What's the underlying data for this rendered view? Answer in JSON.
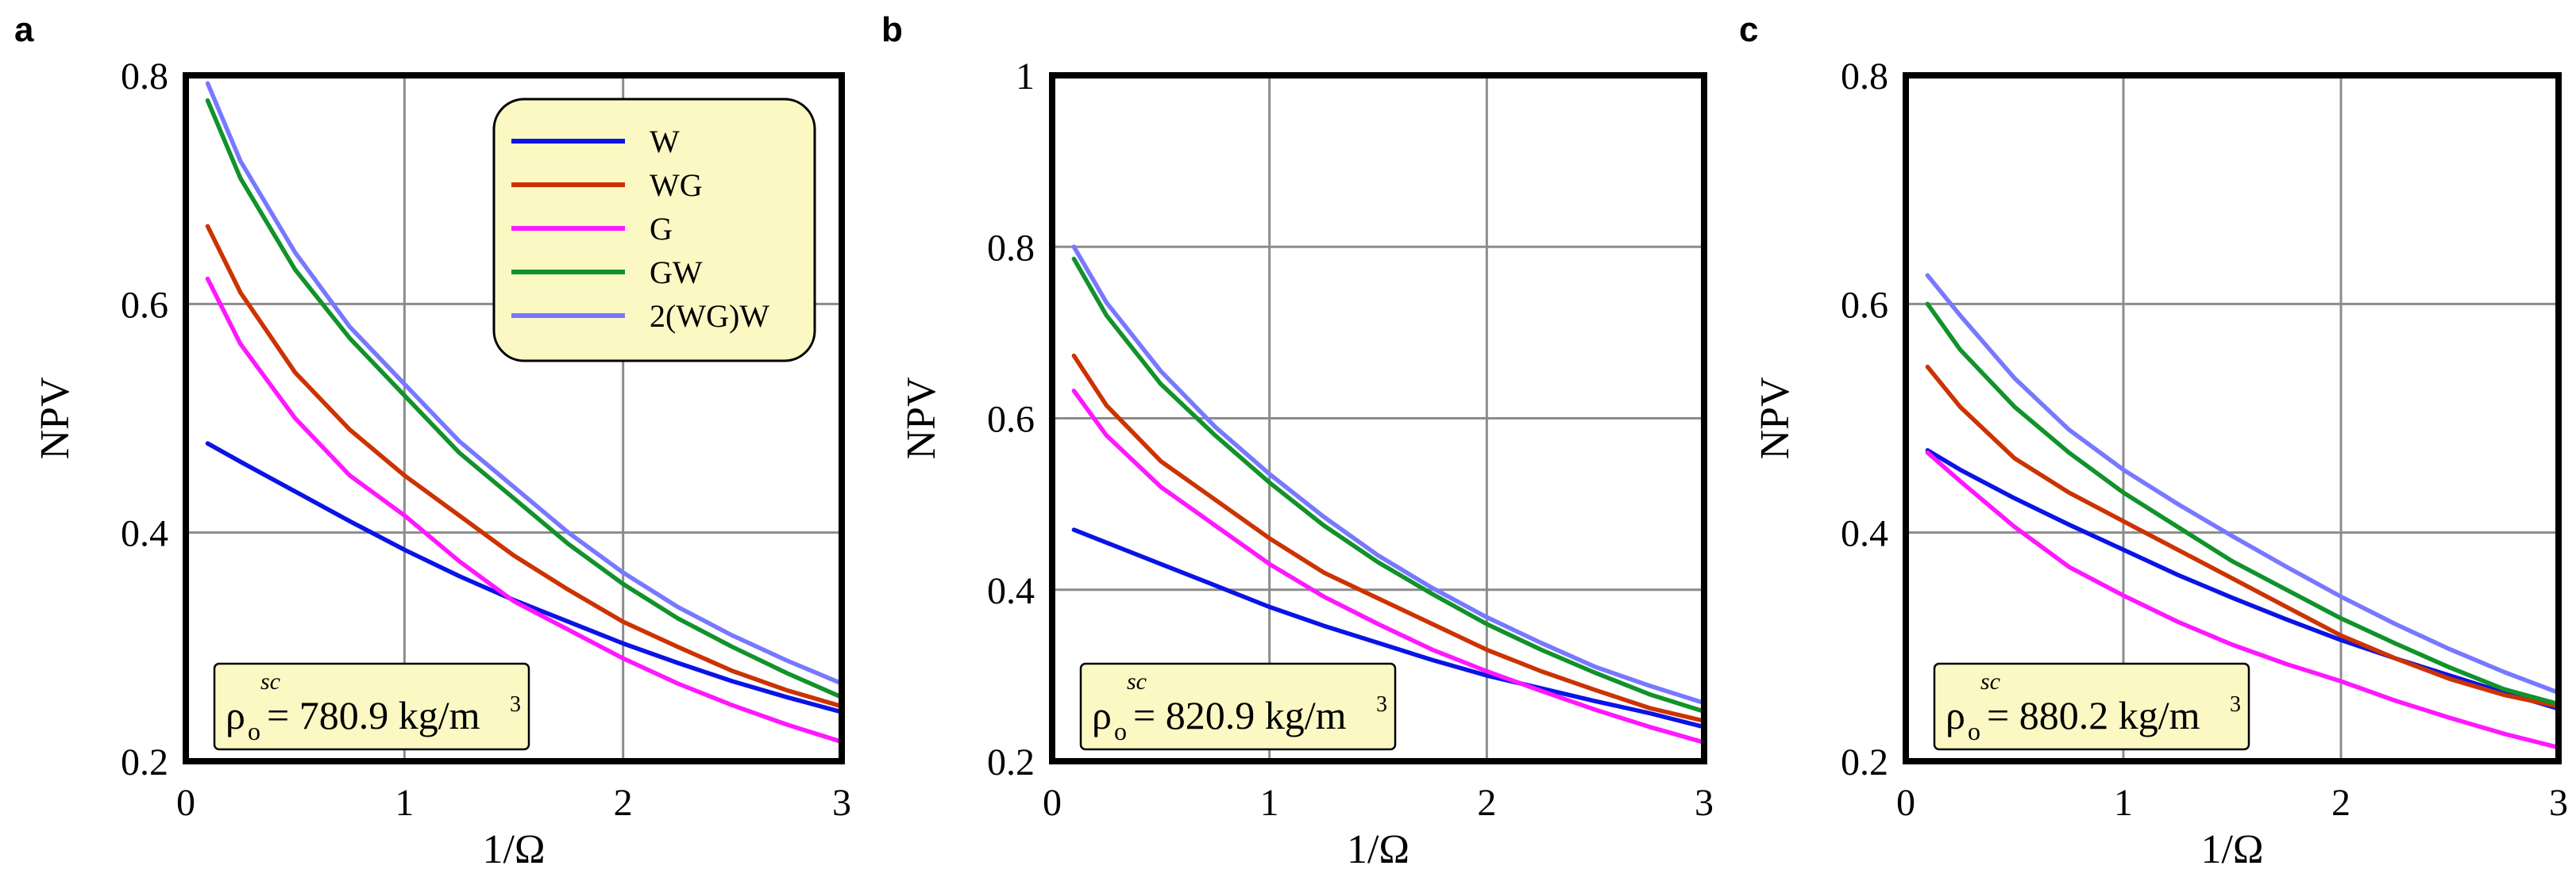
{
  "chart_data": [
    {
      "type": "line",
      "panel_label": "a",
      "xlabel": "1/Ω",
      "ylabel": "NPV",
      "xlim": [
        0,
        3
      ],
      "ylim": [
        0.2,
        0.8
      ],
      "xticks": [
        0,
        1,
        2,
        3
      ],
      "yticks": [
        0.2,
        0.4,
        0.6,
        0.8
      ],
      "grid": true,
      "legend_position": "top-right",
      "annotation": {
        "symbol": "ρ",
        "subscript": "o",
        "superscript": "sc",
        "text": "= 780.9 kg/m",
        "unit_power": "3"
      },
      "x": [
        0.1,
        0.25,
        0.5,
        0.75,
        1.0,
        1.25,
        1.5,
        1.75,
        2.0,
        2.25,
        2.5,
        2.75,
        3.0
      ],
      "series": [
        {
          "name": "W",
          "color": "#0a14e6",
          "values": [
            0.478,
            0.462,
            0.436,
            0.41,
            0.385,
            0.362,
            0.341,
            0.322,
            0.303,
            0.286,
            0.27,
            0.256,
            0.243
          ]
        },
        {
          "name": "WG",
          "color": "#cc3300",
          "values": [
            0.668,
            0.61,
            0.54,
            0.49,
            0.45,
            0.415,
            0.38,
            0.35,
            0.322,
            0.3,
            0.279,
            0.262,
            0.248
          ]
        },
        {
          "name": "G",
          "color": "#ff18ff",
          "values": [
            0.622,
            0.565,
            0.5,
            0.45,
            0.415,
            0.375,
            0.34,
            0.315,
            0.29,
            0.268,
            0.249,
            0.232,
            0.217
          ]
        },
        {
          "name": "GW",
          "color": "#11922a",
          "values": [
            0.778,
            0.71,
            0.63,
            0.57,
            0.52,
            0.47,
            0.43,
            0.39,
            0.355,
            0.325,
            0.3,
            0.277,
            0.256
          ]
        },
        {
          "name": "2(WG)W",
          "color": "#7878ff",
          "values": [
            0.793,
            0.725,
            0.645,
            0.58,
            0.53,
            0.48,
            0.44,
            0.4,
            0.365,
            0.335,
            0.31,
            0.288,
            0.268
          ]
        }
      ]
    },
    {
      "type": "line",
      "panel_label": "b",
      "xlabel": "1/Ω",
      "ylabel": "NPV",
      "xlim": [
        0,
        3
      ],
      "ylim": [
        0.2,
        1.0
      ],
      "xticks": [
        0,
        1,
        2,
        3
      ],
      "yticks": [
        0.2,
        0.4,
        0.6,
        0.8,
        1
      ],
      "grid": true,
      "annotation": {
        "symbol": "ρ",
        "subscript": "o",
        "superscript": "sc",
        "text": "= 820.9 kg/m",
        "unit_power": "3"
      },
      "x": [
        0.1,
        0.25,
        0.5,
        0.75,
        1.0,
        1.25,
        1.5,
        1.75,
        2.0,
        2.25,
        2.5,
        2.75,
        3.0
      ],
      "series": [
        {
          "name": "W",
          "color": "#0a14e6",
          "values": [
            0.47,
            0.455,
            0.43,
            0.405,
            0.38,
            0.358,
            0.338,
            0.318,
            0.3,
            0.285,
            0.27,
            0.256,
            0.24
          ]
        },
        {
          "name": "WG",
          "color": "#cc3300",
          "values": [
            0.673,
            0.615,
            0.55,
            0.505,
            0.46,
            0.42,
            0.39,
            0.36,
            0.33,
            0.305,
            0.283,
            0.262,
            0.247
          ]
        },
        {
          "name": "G",
          "color": "#ff18ff",
          "values": [
            0.632,
            0.58,
            0.52,
            0.475,
            0.43,
            0.392,
            0.36,
            0.33,
            0.305,
            0.282,
            0.26,
            0.24,
            0.222
          ]
        },
        {
          "name": "GW",
          "color": "#11922a",
          "values": [
            0.786,
            0.72,
            0.64,
            0.58,
            0.525,
            0.475,
            0.432,
            0.395,
            0.36,
            0.33,
            0.303,
            0.278,
            0.258
          ]
        },
        {
          "name": "2(WG)W",
          "color": "#7878ff",
          "values": [
            0.8,
            0.735,
            0.655,
            0.59,
            0.535,
            0.485,
            0.44,
            0.402,
            0.368,
            0.338,
            0.31,
            0.288,
            0.268
          ]
        }
      ]
    },
    {
      "type": "line",
      "panel_label": "c",
      "xlabel": "1/Ω",
      "ylabel": "NPV",
      "xlim": [
        0,
        3
      ],
      "ylim": [
        0.2,
        0.8
      ],
      "xticks": [
        0,
        1,
        2,
        3
      ],
      "yticks": [
        0.2,
        0.4,
        0.6,
        0.8
      ],
      "grid": true,
      "annotation": {
        "symbol": "ρ",
        "subscript": "o",
        "superscript": "sc",
        "text": "= 880.2 kg/m",
        "unit_power": "3"
      },
      "x": [
        0.1,
        0.25,
        0.5,
        0.75,
        1.0,
        1.25,
        1.5,
        1.75,
        2.0,
        2.25,
        2.5,
        2.75,
        3.0
      ],
      "series": [
        {
          "name": "W",
          "color": "#0a14e6",
          "values": [
            0.472,
            0.455,
            0.43,
            0.407,
            0.385,
            0.363,
            0.343,
            0.324,
            0.306,
            0.29,
            0.275,
            0.26,
            0.246
          ]
        },
        {
          "name": "WG",
          "color": "#cc3300",
          "values": [
            0.545,
            0.51,
            0.465,
            0.435,
            0.41,
            0.385,
            0.36,
            0.335,
            0.31,
            0.29,
            0.272,
            0.258,
            0.248
          ]
        },
        {
          "name": "G",
          "color": "#ff18ff",
          "values": [
            0.47,
            0.445,
            0.405,
            0.37,
            0.345,
            0.322,
            0.302,
            0.285,
            0.27,
            0.253,
            0.238,
            0.224,
            0.212
          ]
        },
        {
          "name": "GW",
          "color": "#11922a",
          "values": [
            0.6,
            0.56,
            0.51,
            0.47,
            0.435,
            0.405,
            0.375,
            0.35,
            0.325,
            0.303,
            0.282,
            0.263,
            0.25
          ]
        },
        {
          "name": "2(WG)W",
          "color": "#7878ff",
          "values": [
            0.625,
            0.59,
            0.535,
            0.49,
            0.455,
            0.425,
            0.397,
            0.37,
            0.344,
            0.32,
            0.298,
            0.278,
            0.26
          ]
        }
      ]
    }
  ]
}
